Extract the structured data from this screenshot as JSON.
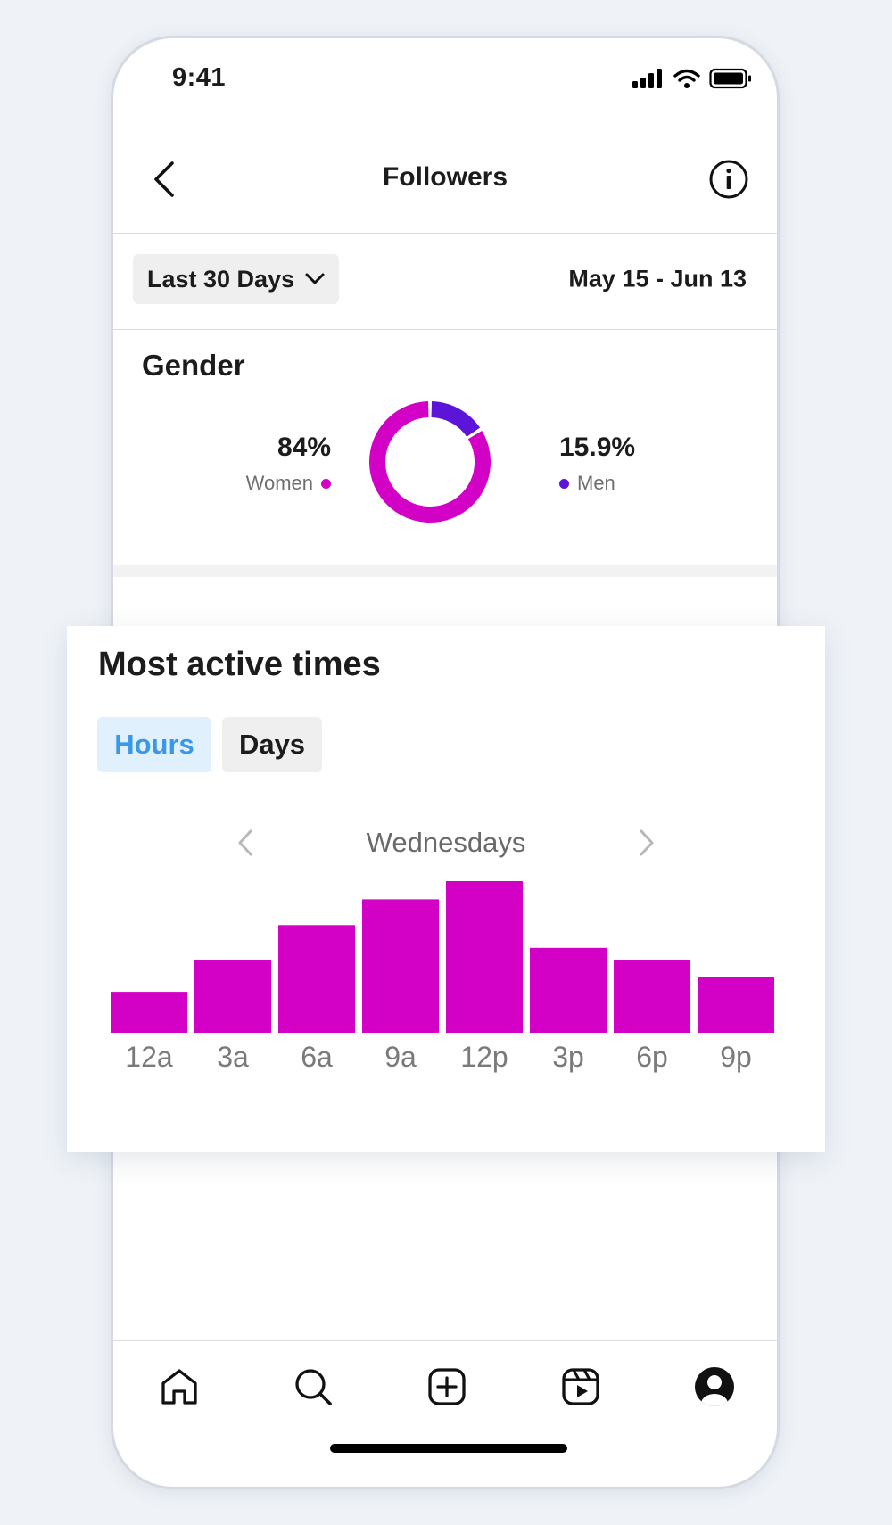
{
  "status_bar": {
    "time": "9:41"
  },
  "header": {
    "title": "Followers"
  },
  "filters": {
    "range_label": "Last 30 Days",
    "date_range": "May 15 - Jun 13"
  },
  "gender": {
    "title": "Gender",
    "women": {
      "percent": "84%",
      "label": "Women",
      "value": 84,
      "color": "#d300c5"
    },
    "men": {
      "percent": "15.9%",
      "label": "Men",
      "value": 15.9,
      "color": "#5b14d8"
    }
  },
  "active_times": {
    "title": "Most active times",
    "tabs": [
      {
        "label": "Hours",
        "selected": true
      },
      {
        "label": "Days",
        "selected": false
      }
    ],
    "day": "Wednesdays"
  },
  "chart_data": {
    "type": "bar",
    "categories": [
      "12a",
      "3a",
      "6a",
      "9a",
      "12p",
      "3p",
      "6p",
      "9p"
    ],
    "values": [
      27,
      48,
      71,
      88,
      100,
      56,
      48,
      37
    ],
    "ylim": [
      0,
      100
    ],
    "color": "#d300c5",
    "grid": false
  },
  "nav": {
    "items": [
      {
        "name": "home-icon"
      },
      {
        "name": "search-icon"
      },
      {
        "name": "create-icon"
      },
      {
        "name": "reels-icon"
      },
      {
        "name": "profile-icon"
      }
    ]
  }
}
